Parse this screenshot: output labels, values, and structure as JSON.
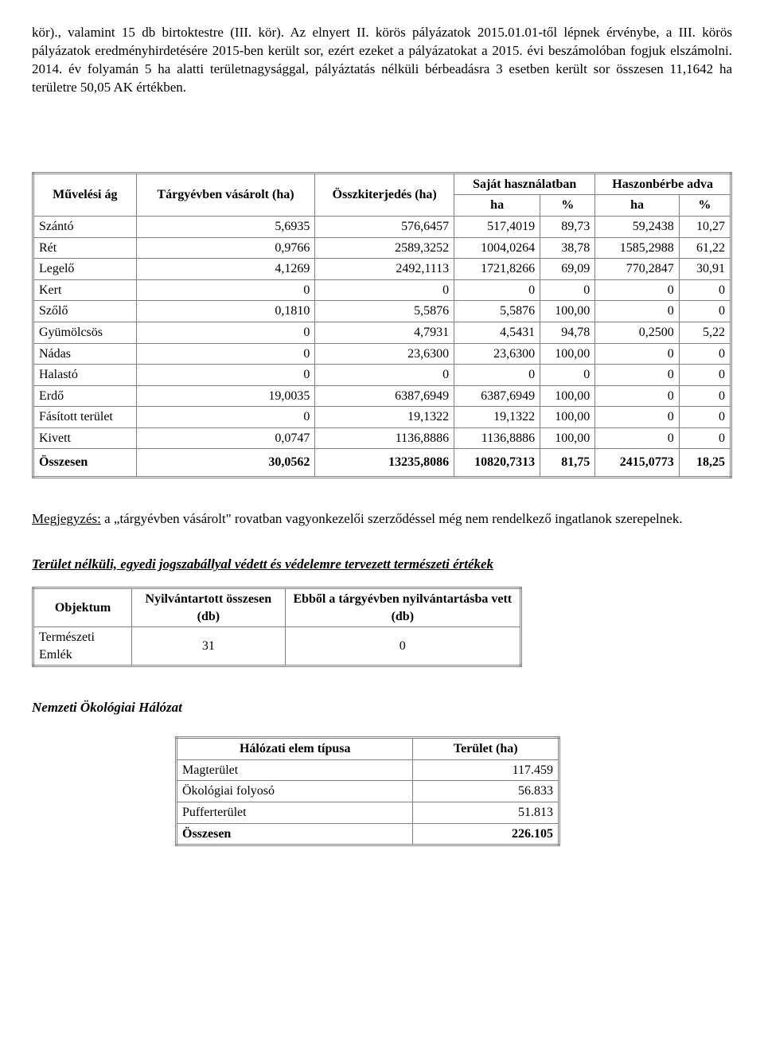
{
  "intro": {
    "paragraph": "kör)., valamint 15 db birtoktestre (III. kör). Az elnyert II. körös pályázatok 2015.01.01-től lépnek érvénybe, a III. körös pályázatok eredményhirdetésére 2015-ben került sor, ezért ezeket a pályázatokat a 2015. évi beszámolóban fogjuk elszámolni. 2014. év folyamán 5 ha alatti területnagysággal, pályáztatás nélküli bérbeadásra 3 esetben került sor összesen 11,1642 ha területre 50,05 AK értékben."
  },
  "main_table": {
    "columns": {
      "col1": "Művelési ág",
      "col2": "Tárgyévben vásárolt (ha)",
      "col3": "Összkiterjedés (ha)",
      "col4_group": "Saját használatban",
      "col5_group": "Haszonbérbe adva",
      "sub_ha": "ha",
      "sub_pct": "%"
    },
    "rows": [
      {
        "name": "Szántó",
        "bought": "5,6935",
        "total": "576,6457",
        "own_ha": "517,4019",
        "own_pct": "89,73",
        "lease_ha": "59,2438",
        "lease_pct": "10,27"
      },
      {
        "name": "Rét",
        "bought": "0,9766",
        "total": "2589,3252",
        "own_ha": "1004,0264",
        "own_pct": "38,78",
        "lease_ha": "1585,2988",
        "lease_pct": "61,22"
      },
      {
        "name": "Legelő",
        "bought": "4,1269",
        "total": "2492,1113",
        "own_ha": "1721,8266",
        "own_pct": "69,09",
        "lease_ha": "770,2847",
        "lease_pct": "30,91"
      },
      {
        "name": "Kert",
        "bought": "0",
        "total": "0",
        "own_ha": "0",
        "own_pct": "0",
        "lease_ha": "0",
        "lease_pct": "0"
      },
      {
        "name": "Szőlő",
        "bought": "0,1810",
        "total": "5,5876",
        "own_ha": "5,5876",
        "own_pct": "100,00",
        "lease_ha": "0",
        "lease_pct": "0"
      },
      {
        "name": "Gyümölcsös",
        "bought": "0",
        "total": "4,7931",
        "own_ha": "4,5431",
        "own_pct": "94,78",
        "lease_ha": "0,2500",
        "lease_pct": "5,22"
      },
      {
        "name": "Nádas",
        "bought": "0",
        "total": "23,6300",
        "own_ha": "23,6300",
        "own_pct": "100,00",
        "lease_ha": "0",
        "lease_pct": "0"
      },
      {
        "name": "Halastó",
        "bought": "0",
        "total": "0",
        "own_ha": "0",
        "own_pct": "0",
        "lease_ha": "0",
        "lease_pct": "0"
      },
      {
        "name": "Erdő",
        "bought": "19,0035",
        "total": "6387,6949",
        "own_ha": "6387,6949",
        "own_pct": "100,00",
        "lease_ha": "0",
        "lease_pct": "0"
      },
      {
        "name": "Fásított terület",
        "bought": "0",
        "total": "19,1322",
        "own_ha": "19,1322",
        "own_pct": "100,00",
        "lease_ha": "0",
        "lease_pct": "0"
      },
      {
        "name": "Kivett",
        "bought": "0,0747",
        "total": "1136,8886",
        "own_ha": "1136,8886",
        "own_pct": "100,00",
        "lease_ha": "0",
        "lease_pct": "0"
      }
    ],
    "totals": {
      "name": "Összesen",
      "bought": "30,0562",
      "total": "13235,8086",
      "own_ha": "10820,7313",
      "own_pct": "81,75",
      "lease_ha": "2415,0773",
      "lease_pct": "18,25"
    }
  },
  "note": {
    "label": "Megjegyzés:",
    "text": " a „tárgyévben vásárolt\" rovatban vagyonkezelői szerződéssel még nem rendelkező ingatlanok szerepelnek."
  },
  "protected_section": {
    "title": "Terület nélküli, egyedi jogszabállyal védett és védelemre tervezett természeti értékek",
    "columns": {
      "col1": "Objektum",
      "col2": "Nyilvántartott összesen (db)",
      "col3": "Ebből a tárgyévben nyilvántartásba vett (db)"
    },
    "rows": [
      {
        "name": "Természeti Emlék",
        "total": "31",
        "year": "0"
      }
    ]
  },
  "eco_network": {
    "title": "Nemzeti Ökológiai Hálózat",
    "columns": {
      "col1": "Hálózati elem típusa",
      "col2": "Terület (ha)"
    },
    "rows": [
      {
        "name": "Magterület",
        "area": "117.459"
      },
      {
        "name": "Ökológiai folyosó",
        "area": "56.833"
      },
      {
        "name": "Pufferterület",
        "area": "51.813"
      }
    ],
    "totals": {
      "name": "Összesen",
      "area": "226.105"
    }
  }
}
